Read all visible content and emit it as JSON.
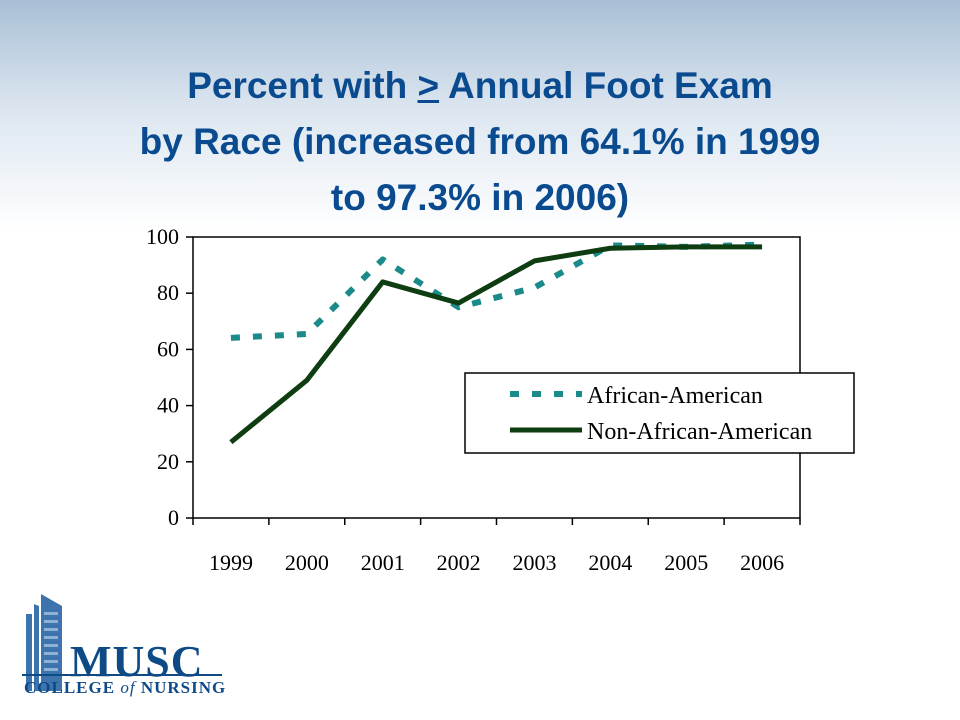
{
  "title": {
    "prefix": "Percent with ",
    "underlined": ">",
    "suffix": " Annual Foot Exam",
    "line2": "by Race (increased from 64.1% in 1999",
    "line3": "to 97.3% in 2006)"
  },
  "chart_data": {
    "type": "line",
    "title": "",
    "xlabel": "",
    "ylabel": "",
    "categories": [
      "1999",
      "2000",
      "2001",
      "2002",
      "2003",
      "2004",
      "2005",
      "2006"
    ],
    "ylim": [
      0,
      100
    ],
    "yticks": [
      0,
      20,
      40,
      60,
      80,
      100
    ],
    "grid": false,
    "legend": "inside-right",
    "series": [
      {
        "name": "African-American",
        "values": [
          64.1,
          65.5,
          92,
          75,
          82,
          97,
          96.5,
          97.3
        ],
        "style": "dotted",
        "color": "#1a8a8a"
      },
      {
        "name": "Non-African-American",
        "values": [
          27,
          49,
          84,
          76.5,
          91.5,
          96,
          96.5,
          96.5
        ],
        "style": "solid",
        "color": "#0d3d10"
      }
    ]
  },
  "logo": {
    "word": "MUSC",
    "sub_before": "COLLEGE ",
    "sub_of": "of",
    "sub_after": " NURSING"
  },
  "colors": {
    "title": "#0a4a8f",
    "logo": "#0e4a86"
  }
}
